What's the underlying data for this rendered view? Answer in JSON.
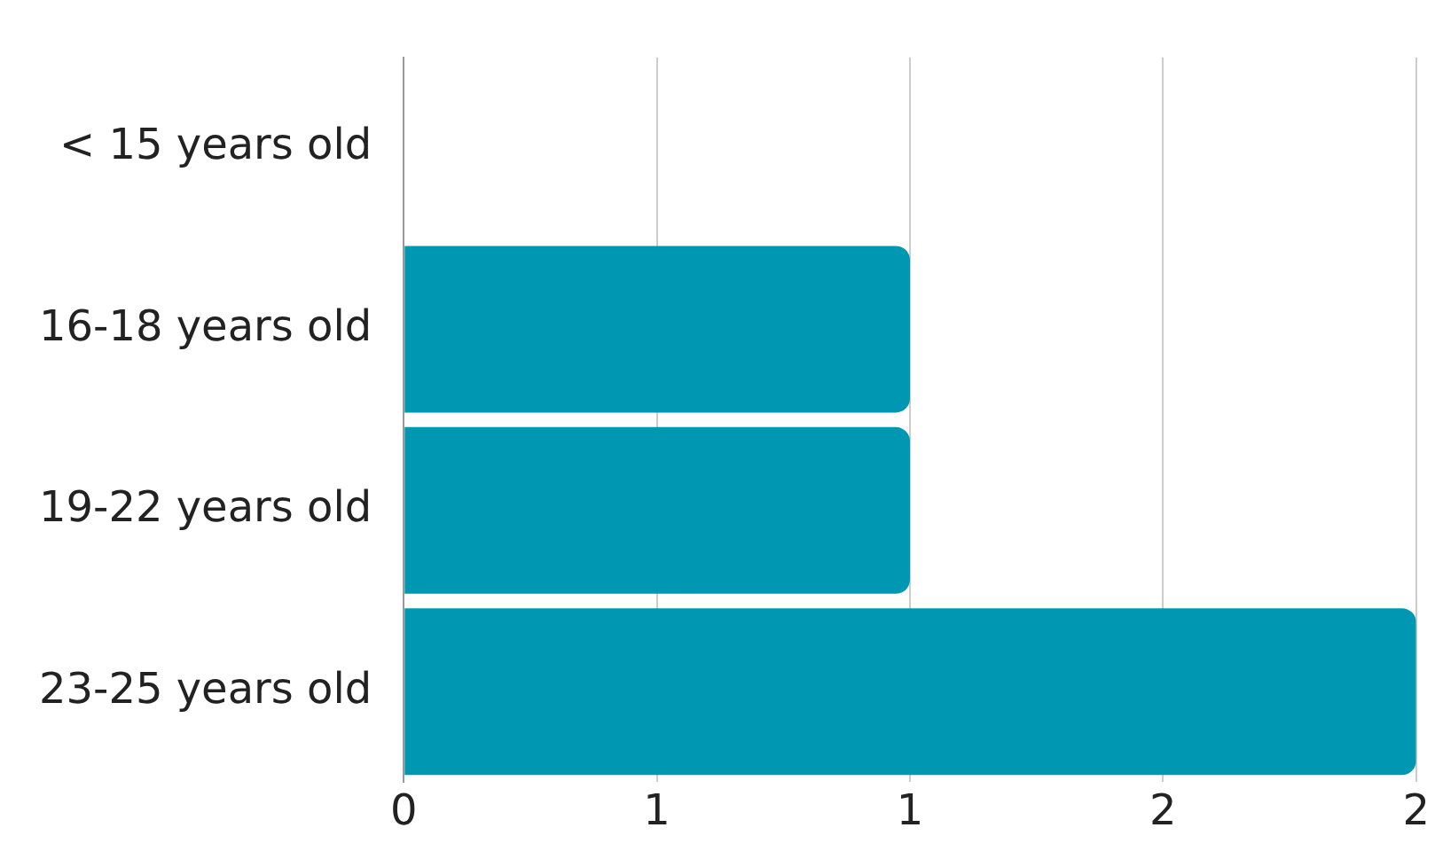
{
  "chart_data": {
    "type": "bar",
    "orientation": "horizontal",
    "categories": [
      "< 15 years old",
      "16-18 years old",
      "19-22 years old",
      "23-25 years old"
    ],
    "values": [
      0,
      1,
      1,
      2
    ],
    "color": "#0097b2",
    "xlim": [
      0,
      2
    ],
    "xticks": [
      0,
      {
        "value": 0.5,
        "label": "1"
      },
      1,
      {
        "value": 1.5,
        "label": "2"
      },
      2
    ],
    "grid": "x",
    "legend": false
  }
}
